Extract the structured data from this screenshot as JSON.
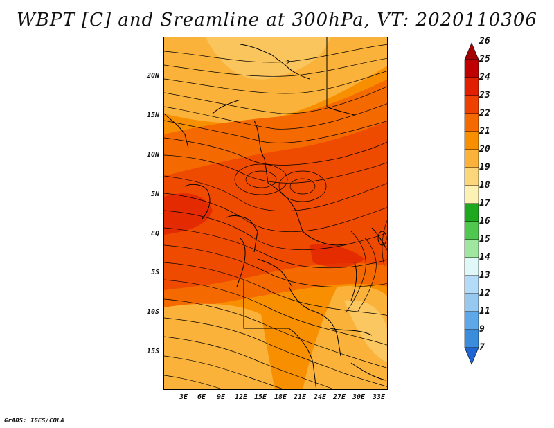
{
  "title": "WBPT [C] and Sreamline at 300hPa, VT: 2020110306",
  "footer": "GrADS: IGES/COLA",
  "map": {
    "lat_labels": [
      "20N",
      "15N",
      "10N",
      "5N",
      "EQ",
      "5S",
      "10S",
      "15S"
    ],
    "lat_values": [
      20,
      15,
      10,
      5,
      0,
      -5,
      -10,
      -15
    ],
    "lon_labels": [
      "3E",
      "6E",
      "9E",
      "12E",
      "15E",
      "18E",
      "21E",
      "24E",
      "27E",
      "30E",
      "33E"
    ],
    "lon_values": [
      3,
      6,
      9,
      12,
      15,
      18,
      21,
      24,
      27,
      30,
      33
    ],
    "lon_range": [
      0,
      34
    ],
    "lat_range": [
      -19.5,
      25
    ],
    "field": "WBPT",
    "units": "C",
    "level": "300hPa",
    "valid_time": "2020110306"
  },
  "colorbar": {
    "labels": [
      "26",
      "25",
      "24",
      "23",
      "22",
      "21",
      "20",
      "19",
      "18",
      "17",
      "16",
      "15",
      "14",
      "13",
      "12",
      "11",
      "9",
      "7"
    ],
    "colors": [
      "#a50000",
      "#c00000",
      "#e02000",
      "#ee4000",
      "#f46a00",
      "#f88f00",
      "#fab23a",
      "#fcd67a",
      "#fdf2b4",
      "#1ea81e",
      "#50c850",
      "#a0e6a0",
      "#e0f8f8",
      "#b4dcf8",
      "#96c8f0",
      "#5ea8ea",
      "#3c8cde",
      "#1e64d2"
    ]
  },
  "colors": {
    "warm_core": "#ee4a00",
    "mid_orange": "#f46a00",
    "orange": "#f88f00",
    "light_orange": "#fab23a",
    "pale": "#fcd67a",
    "hot_spot": "#e02000"
  }
}
